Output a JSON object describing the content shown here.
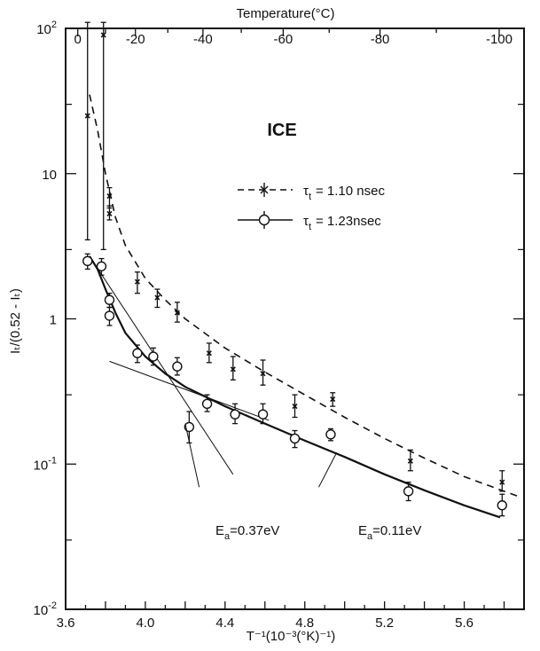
{
  "chart_data": {
    "type": "scatter",
    "title": "ICE",
    "xlabel": "T⁻¹(10⁻³(°K)⁻¹)",
    "xlabel_top": "Temperature(°C)",
    "ylabel": "Iₜ/(0.52 - Iₜ)",
    "xlim": [
      3.6,
      5.9
    ],
    "ylim": [
      0.01,
      100
    ],
    "yscale": "log",
    "grid": false,
    "legend_position": "right",
    "x_ticks": [
      "3.6",
      "4.0",
      "4.4",
      "4.8",
      "5.2",
      "5.6"
    ],
    "x_tick_values": [
      3.6,
      4.0,
      4.4,
      4.8,
      5.2,
      5.6
    ],
    "top_ticks": [
      "0",
      "-20",
      "-40",
      "-60",
      "-80",
      "-100"
    ],
    "top_tick_values": [
      0,
      -20,
      -40,
      -60,
      -80,
      -100
    ],
    "y_ticks": [
      {
        "value": 100,
        "base": "10",
        "exp": "2"
      },
      {
        "value": 10,
        "base": "10",
        "exp": ""
      },
      {
        "value": 1,
        "base": "1",
        "exp": ""
      },
      {
        "value": 0.1,
        "base": "10",
        "exp": "-1"
      },
      {
        "value": 0.01,
        "base": "10",
        "exp": "-2"
      }
    ],
    "series": [
      {
        "name": "τₜ = 1.10 nsec",
        "label_symbol": "τ",
        "label_sub": "t",
        "label_value": "= 1.10 nsec",
        "marker": "cross",
        "line": "dashed",
        "points": [
          {
            "x": 3.71,
            "y": 25.0,
            "lo": 3.5,
            "hi": 110
          },
          {
            "x": 3.79,
            "y": 90.0,
            "lo": 3.0,
            "hi": 110
          },
          {
            "x": 3.82,
            "y": 7.0,
            "lo": 5.8,
            "hi": 8.0
          },
          {
            "x": 3.82,
            "y": 5.3,
            "lo": 4.8,
            "hi": 6.0
          },
          {
            "x": 3.96,
            "y": 1.8,
            "lo": 1.5,
            "hi": 2.1
          },
          {
            "x": 4.06,
            "y": 1.4,
            "lo": 1.2,
            "hi": 1.6
          },
          {
            "x": 4.16,
            "y": 1.1,
            "lo": 0.95,
            "hi": 1.3
          },
          {
            "x": 4.32,
            "y": 0.58,
            "lo": 0.5,
            "hi": 0.68
          },
          {
            "x": 4.44,
            "y": 0.45,
            "lo": 0.38,
            "hi": 0.55
          },
          {
            "x": 4.59,
            "y": 0.42,
            "lo": 0.35,
            "hi": 0.52
          },
          {
            "x": 4.75,
            "y": 0.25,
            "lo": 0.21,
            "hi": 0.3
          },
          {
            "x": 4.94,
            "y": 0.28,
            "lo": 0.25,
            "hi": 0.31
          },
          {
            "x": 5.33,
            "y": 0.105,
            "lo": 0.09,
            "hi": 0.125
          },
          {
            "x": 5.79,
            "y": 0.075,
            "lo": 0.065,
            "hi": 0.09
          }
        ],
        "fit_curve": [
          {
            "x": 3.72,
            "y": 35
          },
          {
            "x": 3.76,
            "y": 20
          },
          {
            "x": 3.8,
            "y": 10
          },
          {
            "x": 3.85,
            "y": 5
          },
          {
            "x": 3.9,
            "y": 3.2
          },
          {
            "x": 4.0,
            "y": 1.9
          },
          {
            "x": 4.1,
            "y": 1.35
          },
          {
            "x": 4.2,
            "y": 1.0
          },
          {
            "x": 4.4,
            "y": 0.63
          },
          {
            "x": 4.6,
            "y": 0.43
          },
          {
            "x": 4.8,
            "y": 0.3
          },
          {
            "x": 5.0,
            "y": 0.21
          },
          {
            "x": 5.2,
            "y": 0.15
          },
          {
            "x": 5.4,
            "y": 0.11
          },
          {
            "x": 5.6,
            "y": 0.082
          },
          {
            "x": 5.87,
            "y": 0.06
          }
        ]
      },
      {
        "name": "τₜ = 1.23 nsec",
        "label_symbol": "τ",
        "label_sub": "t",
        "label_value": "= 1.23nsec",
        "marker": "open-circle",
        "line": "solid",
        "points": [
          {
            "x": 3.71,
            "y": 2.5,
            "lo": 2.2,
            "hi": 2.8
          },
          {
            "x": 3.78,
            "y": 2.3,
            "lo": 2.0,
            "hi": 2.6
          },
          {
            "x": 3.82,
            "y": 1.35,
            "lo": 1.2,
            "hi": 1.5
          },
          {
            "x": 3.82,
            "y": 1.05,
            "lo": 0.9,
            "hi": 1.2
          },
          {
            "x": 3.96,
            "y": 0.58,
            "lo": 0.5,
            "hi": 0.66
          },
          {
            "x": 4.04,
            "y": 0.55,
            "lo": 0.48,
            "hi": 0.63
          },
          {
            "x": 4.16,
            "y": 0.47,
            "lo": 0.41,
            "hi": 0.54
          },
          {
            "x": 4.22,
            "y": 0.18,
            "lo": 0.14,
            "hi": 0.23
          },
          {
            "x": 4.31,
            "y": 0.26,
            "lo": 0.23,
            "hi": 0.3
          },
          {
            "x": 4.45,
            "y": 0.22,
            "lo": 0.19,
            "hi": 0.26
          },
          {
            "x": 4.59,
            "y": 0.22,
            "lo": 0.19,
            "hi": 0.26
          },
          {
            "x": 4.75,
            "y": 0.15,
            "lo": 0.13,
            "hi": 0.17
          },
          {
            "x": 4.93,
            "y": 0.16,
            "lo": 0.145,
            "hi": 0.175
          },
          {
            "x": 5.32,
            "y": 0.065,
            "lo": 0.056,
            "hi": 0.075
          },
          {
            "x": 5.79,
            "y": 0.052,
            "lo": 0.044,
            "hi": 0.062
          }
        ],
        "fit_curve": [
          {
            "x": 3.72,
            "y": 2.7
          },
          {
            "x": 3.76,
            "y": 2.2
          },
          {
            "x": 3.8,
            "y": 1.6
          },
          {
            "x": 3.85,
            "y": 1.1
          },
          {
            "x": 3.9,
            "y": 0.8
          },
          {
            "x": 4.0,
            "y": 0.55
          },
          {
            "x": 4.1,
            "y": 0.42
          },
          {
            "x": 4.2,
            "y": 0.34
          },
          {
            "x": 4.4,
            "y": 0.25
          },
          {
            "x": 4.6,
            "y": 0.19
          },
          {
            "x": 4.8,
            "y": 0.145
          },
          {
            "x": 5.0,
            "y": 0.112
          },
          {
            "x": 5.2,
            "y": 0.085
          },
          {
            "x": 5.4,
            "y": 0.066
          },
          {
            "x": 5.6,
            "y": 0.052
          },
          {
            "x": 5.78,
            "y": 0.043
          }
        ]
      }
    ],
    "tangent_lines": [
      {
        "name": "Ea-0.37",
        "from": {
          "x": 3.72,
          "y": 2.7
        },
        "to": {
          "x": 4.44,
          "y": 0.085
        }
      },
      {
        "name": "Ea-0.11",
        "from": {
          "x": 3.82,
          "y": 0.51
        },
        "to": {
          "x": 4.62,
          "y": 0.2
        }
      }
    ],
    "annotations": [
      {
        "id": "ea1",
        "prefix": "E",
        "sub": "a",
        "text": "=0.37eV",
        "at": {
          "x": 4.27,
          "y": 0.062
        },
        "arrow_to": {
          "x": 4.2,
          "y": 0.19
        }
      },
      {
        "id": "ea2",
        "prefix": "E",
        "sub": "a",
        "text": "=0.11eV",
        "at": {
          "x": 4.87,
          "y": 0.062
        },
        "arrow_to": {
          "x": 4.96,
          "y": 0.12
        }
      }
    ]
  }
}
